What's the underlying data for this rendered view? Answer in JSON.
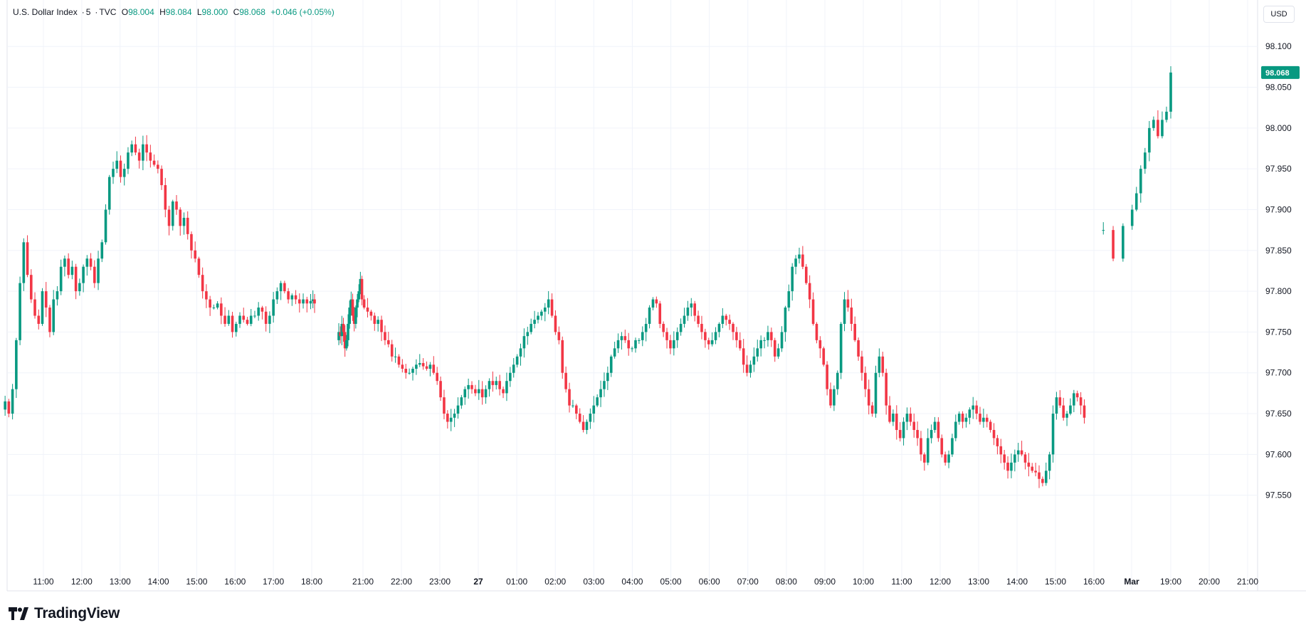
{
  "header": {
    "symbol": "U.S. Dollar Index",
    "interval": "5",
    "source": "TVC",
    "open_label": "O",
    "open": "98.004",
    "high_label": "H",
    "high": "98.084",
    "low_label": "L",
    "low": "98.000",
    "close_label": "C",
    "close": "98.068",
    "change": "+0.046 (+0.05%)"
  },
  "currency_button": "USD",
  "last_price": "98.068",
  "brand": "TradingView",
  "colors": {
    "up": "#089981",
    "down": "#f23645",
    "grid": "#f0f3fa",
    "axis_text": "#131722"
  },
  "chart_data": {
    "type": "candlestick",
    "ylim": [
      97.5,
      98.115
    ],
    "y_ticks": [
      "98.100",
      "98.050",
      "98.000",
      "97.950",
      "97.900",
      "97.850",
      "97.800",
      "97.750",
      "97.700",
      "97.650",
      "97.600",
      "97.550"
    ],
    "x_ticks": [
      "11:00",
      "12:00",
      "13:00",
      "14:00",
      "15:00",
      "16:00",
      "17:00",
      "18:00",
      "21:00",
      "22:00",
      "23:00",
      "27",
      "01:00",
      "02:00",
      "03:00",
      "04:00",
      "05:00",
      "06:00",
      "07:00",
      "08:00",
      "09:00",
      "10:00",
      "11:00",
      "12:00",
      "13:00",
      "14:00",
      "15:00",
      "16:00",
      "Mar",
      "19:00",
      "20:00",
      "21:00"
    ],
    "segments": [
      {
        "start": "10:00",
        "end": "18:10",
        "closes": [
          97.665,
          97.65,
          97.68,
          97.74,
          97.81,
          97.86,
          97.82,
          97.79,
          97.77,
          97.76,
          97.8,
          97.78,
          97.75,
          97.79,
          97.8,
          97.83,
          97.84,
          97.82,
          97.83,
          97.8,
          97.81,
          97.83,
          97.84,
          97.83,
          97.81,
          97.84,
          97.86,
          97.9,
          97.94,
          97.95,
          97.96,
          97.94,
          97.95,
          97.97,
          97.98,
          97.97,
          97.96,
          97.98,
          97.97,
          97.96,
          97.955,
          97.95,
          97.93,
          97.9,
          97.88,
          97.91,
          97.9,
          97.88,
          97.89,
          97.87,
          97.85,
          97.84,
          97.82,
          97.8,
          97.79,
          97.78,
          97.78,
          97.785,
          97.77,
          97.76,
          97.77,
          97.75,
          97.76,
          97.77,
          97.765,
          97.76,
          97.77,
          97.77,
          97.78,
          97.775,
          97.76,
          97.77,
          97.79,
          97.8,
          97.81,
          97.8,
          97.79,
          97.795,
          97.79,
          97.785,
          97.79,
          97.785,
          97.788,
          97.79,
          97.785
        ]
      },
      {
        "start": "19:35",
        "end": "15:45",
        "closes": [
          97.75,
          97.745,
          97.76,
          97.75,
          97.73,
          97.74,
          97.76,
          97.78,
          97.79,
          97.77,
          97.76,
          97.78,
          97.79,
          97.8,
          97.815,
          97.79,
          97.78,
          97.775,
          97.77,
          97.76,
          97.765,
          97.75,
          97.74,
          97.735,
          97.72,
          97.72,
          97.71,
          97.705,
          97.7,
          97.7,
          97.705,
          97.71,
          97.712,
          97.708,
          97.705,
          97.71,
          97.7,
          97.69,
          97.67,
          97.65,
          97.64,
          97.645,
          97.65,
          97.66,
          97.67,
          97.68,
          97.685,
          97.68,
          97.675,
          97.68,
          97.67,
          97.68,
          97.69,
          97.685,
          97.69,
          97.68,
          97.675,
          97.69,
          97.7,
          97.71,
          97.72,
          97.73,
          97.745,
          97.75,
          97.76,
          97.765,
          97.77,
          97.775,
          97.78,
          97.79,
          97.77,
          97.75,
          97.74,
          97.7,
          97.68,
          97.66,
          97.66,
          97.65,
          97.64,
          97.63,
          97.64,
          97.65,
          97.66,
          97.67,
          97.68,
          97.69,
          97.7,
          97.72,
          97.73,
          97.74,
          97.745,
          97.74,
          97.73,
          97.73,
          97.74,
          97.74,
          97.75,
          97.76,
          97.78,
          97.79,
          97.785,
          97.76,
          97.75,
          97.74,
          97.73,
          97.74,
          97.75,
          97.76,
          97.77,
          97.78,
          97.785,
          97.77,
          97.76,
          97.75,
          97.74,
          97.735,
          97.74,
          97.75,
          97.76,
          97.77,
          97.765,
          97.76,
          97.75,
          97.74,
          97.73,
          97.71,
          97.7,
          97.71,
          97.72,
          97.73,
          97.74,
          97.74,
          97.75,
          97.74,
          97.72,
          97.73,
          97.75,
          97.78,
          97.8,
          97.83,
          97.84,
          97.845,
          97.83,
          97.81,
          97.79,
          97.76,
          97.74,
          97.73,
          97.71,
          97.68,
          97.66,
          97.68,
          97.7,
          97.76,
          97.79,
          97.78,
          97.76,
          97.74,
          97.72,
          97.7,
          97.68,
          97.66,
          97.65,
          97.7,
          97.72,
          97.7,
          97.66,
          97.64,
          97.65,
          97.63,
          97.62,
          97.64,
          97.65,
          97.64,
          97.63,
          97.62,
          97.6,
          97.59,
          97.62,
          97.63,
          97.64,
          97.62,
          97.6,
          97.59,
          97.6,
          97.62,
          97.64,
          97.65,
          97.64,
          97.645,
          97.655,
          97.66,
          97.65,
          97.64,
          97.645,
          97.64,
          97.63,
          97.62,
          97.61,
          97.6,
          97.59,
          97.58,
          97.59,
          97.6,
          97.605,
          97.6,
          97.59,
          97.585,
          97.58,
          97.578,
          97.57,
          97.565,
          97.58,
          97.6,
          97.65,
          97.67,
          97.66,
          97.645,
          97.65,
          97.66,
          97.675,
          97.67,
          97.66,
          97.645
        ]
      },
      {
        "start": "18:00",
        "end": "19:00",
        "closes": [
          97.875,
          97.84,
          97.88,
          97.9,
          97.92,
          97.95,
          97.97,
          98.0,
          98.01,
          97.99,
          98.01,
          98.02,
          98.068
        ]
      }
    ]
  }
}
